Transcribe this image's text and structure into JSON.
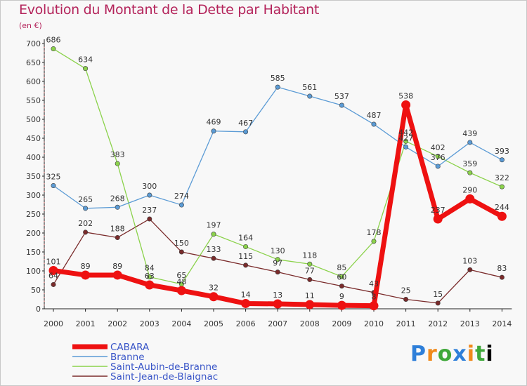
{
  "title": "Evolution du Montant de la Dette par Habitant",
  "unit_label": "(en €)",
  "logo_text": "Proxiti",
  "chart_data": {
    "type": "line",
    "x": [
      "2000",
      "2001",
      "2002",
      "2003",
      "2004",
      "2005",
      "2006",
      "2007",
      "2008",
      "2009",
      "2010",
      "2011",
      "2012",
      "2013",
      "2014"
    ],
    "ylim": [
      0,
      700
    ],
    "yticks": [
      0,
      50,
      100,
      150,
      200,
      250,
      300,
      350,
      400,
      450,
      500,
      550,
      600,
      650,
      700
    ],
    "grid": false,
    "legend_placement": "bottom-left",
    "series": [
      {
        "name": "CABARA",
        "color": "#ee1111",
        "values": [
          101,
          89,
          89,
          63,
          48,
          32,
          14,
          13,
          11,
          9,
          8,
          538,
          237,
          290,
          244
        ]
      },
      {
        "name": "Branne",
        "color": "#5b9bd5",
        "values": [
          325,
          265,
          268,
          300,
          274,
          469,
          467,
          585,
          561,
          537,
          487,
          427,
          376,
          439,
          393
        ]
      },
      {
        "name": "Saint-Aubin-de-Branne",
        "color": "#8bd24b",
        "values": [
          686,
          634,
          383,
          84,
          65,
          197,
          164,
          130,
          118,
          85,
          178,
          442,
          402,
          359,
          322
        ]
      },
      {
        "name": "Saint-Jean-de-Blaignac",
        "color": "#7a2b2b",
        "values": [
          64,
          202,
          188,
          237,
          150,
          133,
          115,
          97,
          77,
          60,
          43,
          25,
          15,
          103,
          83
        ]
      }
    ],
    "data_labels": [
      [
        "101",
        "89",
        "89",
        "63",
        "48",
        "32",
        "14",
        "13",
        "11",
        "9",
        "8",
        "538",
        "237",
        "290",
        "244"
      ],
      [
        "325",
        "265",
        "268",
        "300",
        "274",
        "469",
        "467",
        "585",
        "561",
        "537",
        "487",
        "427",
        "376",
        "439",
        "393"
      ],
      [
        "686",
        "634",
        "383",
        "84",
        "65",
        "197",
        "164",
        "130",
        "118",
        "85",
        "178",
        "442",
        "402",
        "359",
        "322"
      ],
      [
        "64",
        "202",
        "188",
        "237",
        "150",
        "133",
        "115",
        "97",
        "77",
        "60",
        "43",
        "25",
        "15",
        "103",
        "83"
      ]
    ]
  }
}
